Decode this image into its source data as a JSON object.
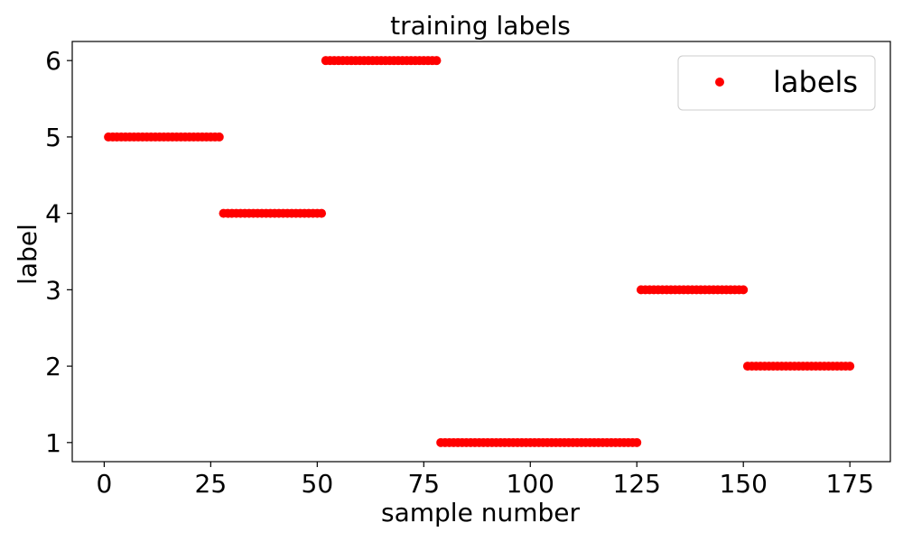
{
  "chart_data": {
    "type": "scatter",
    "title": "training labels",
    "xlabel": "sample number",
    "ylabel": "label",
    "xlim": [
      -7.5,
      184.5
    ],
    "ylim": [
      0.75,
      6.25
    ],
    "xticks": [
      0,
      25,
      50,
      75,
      100,
      125,
      150,
      175
    ],
    "yticks": [
      1,
      2,
      3,
      4,
      5,
      6
    ],
    "grid": false,
    "legend": {
      "position": "top-right",
      "entries": [
        "labels"
      ]
    },
    "series": [
      {
        "name": "labels",
        "color": "#ff0000",
        "marker": "circle",
        "segments": [
          {
            "x_start": 1,
            "x_end": 27,
            "y": 5
          },
          {
            "x_start": 28,
            "x_end": 51,
            "y": 4
          },
          {
            "x_start": 52,
            "x_end": 78,
            "y": 6
          },
          {
            "x_start": 79,
            "x_end": 125,
            "y": 1
          },
          {
            "x_start": 126,
            "x_end": 150,
            "y": 3
          },
          {
            "x_start": 151,
            "x_end": 175,
            "y": 2
          }
        ]
      }
    ]
  }
}
